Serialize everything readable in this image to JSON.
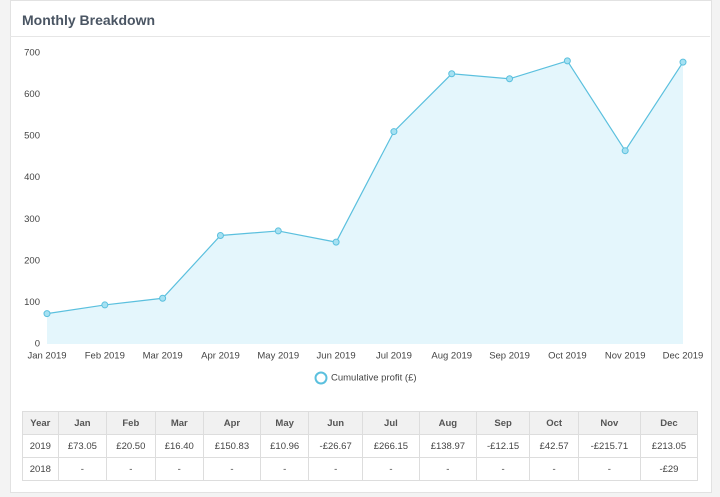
{
  "panel": {
    "title": "Monthly Breakdown"
  },
  "chart_data": {
    "type": "line",
    "categories": [
      "Jan 2019",
      "Feb 2019",
      "Mar 2019",
      "Apr 2019",
      "May 2019",
      "Jun 2019",
      "Jul 2019",
      "Aug 2019",
      "Sep 2019",
      "Oct 2019",
      "Nov 2019",
      "Dec 2019"
    ],
    "series": [
      {
        "name": "Cumulative profit (£)",
        "color": "#5bc0de",
        "fill": "#e4f6fc",
        "values": [
          73,
          94,
          110,
          261,
          272,
          245,
          511,
          650,
          638,
          681,
          465,
          678
        ]
      }
    ],
    "ylim": [
      0,
      700
    ],
    "yticks": [
      0,
      100,
      200,
      300,
      400,
      500,
      600,
      700
    ],
    "grid": false,
    "legend": "bottom"
  },
  "table": {
    "columns": [
      "Year",
      "Jan",
      "Feb",
      "Mar",
      "Apr",
      "May",
      "Jun",
      "Jul",
      "Aug",
      "Sep",
      "Oct",
      "Nov",
      "Dec"
    ],
    "rows": [
      [
        "2019",
        "£73.05",
        "£20.50",
        "£16.40",
        "£150.83",
        "£10.96",
        "-£26.67",
        "£266.15",
        "£138.97",
        "-£12.15",
        "£42.57",
        "-£215.71",
        "£213.05"
      ],
      [
        "2018",
        "-",
        "-",
        "-",
        "-",
        "-",
        "-",
        "-",
        "-",
        "-",
        "-",
        "-",
        "-£29"
      ]
    ]
  }
}
